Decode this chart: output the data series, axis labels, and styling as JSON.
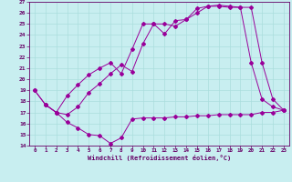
{
  "xlabel": "Windchill (Refroidissement éolien,°C)",
  "bg_color": "#c8eef0",
  "line_color": "#990099",
  "grid_color": "#aadddd",
  "xlim": [
    -0.5,
    23.5
  ],
  "ylim": [
    14,
    27
  ],
  "xticks": [
    0,
    1,
    2,
    3,
    4,
    5,
    6,
    7,
    8,
    9,
    10,
    11,
    12,
    13,
    14,
    15,
    16,
    17,
    18,
    19,
    20,
    21,
    22,
    23
  ],
  "yticks": [
    14,
    15,
    16,
    17,
    18,
    19,
    20,
    21,
    22,
    23,
    24,
    25,
    26,
    27
  ],
  "line1_x": [
    0,
    1,
    2,
    3,
    4,
    5,
    6,
    7,
    8,
    9,
    10,
    11,
    12,
    13,
    14,
    15,
    16,
    17,
    18,
    19,
    20,
    21,
    22,
    23
  ],
  "line1_y": [
    19.0,
    17.7,
    17.0,
    16.1,
    15.6,
    15.0,
    14.9,
    14.2,
    14.7,
    16.4,
    16.5,
    16.5,
    16.5,
    16.6,
    16.6,
    16.7,
    16.7,
    16.8,
    16.8,
    16.8,
    16.8,
    17.0,
    17.0,
    17.2
  ],
  "line2_x": [
    0,
    1,
    2,
    3,
    4,
    5,
    6,
    7,
    8,
    9,
    10,
    11,
    12,
    13,
    14,
    15,
    16,
    17,
    18,
    19,
    20,
    21,
    22,
    23
  ],
  "line2_y": [
    19.0,
    17.7,
    17.0,
    18.5,
    19.5,
    20.4,
    21.0,
    21.5,
    20.5,
    22.7,
    25.0,
    25.0,
    24.1,
    25.3,
    25.4,
    26.4,
    26.6,
    26.6,
    26.5,
    26.5,
    21.5,
    18.2,
    17.5,
    17.2
  ],
  "line3_x": [
    1,
    2,
    3,
    4,
    5,
    6,
    7,
    8,
    9,
    10,
    11,
    12,
    13,
    14,
    15,
    16,
    17,
    18,
    19,
    20,
    21,
    22,
    23
  ],
  "line3_y": [
    17.7,
    17.0,
    16.8,
    17.5,
    18.8,
    19.6,
    20.5,
    21.3,
    20.7,
    23.2,
    25.0,
    25.0,
    24.8,
    25.4,
    26.0,
    26.6,
    26.7,
    26.6,
    26.5,
    26.5,
    21.5,
    18.2,
    17.2
  ]
}
